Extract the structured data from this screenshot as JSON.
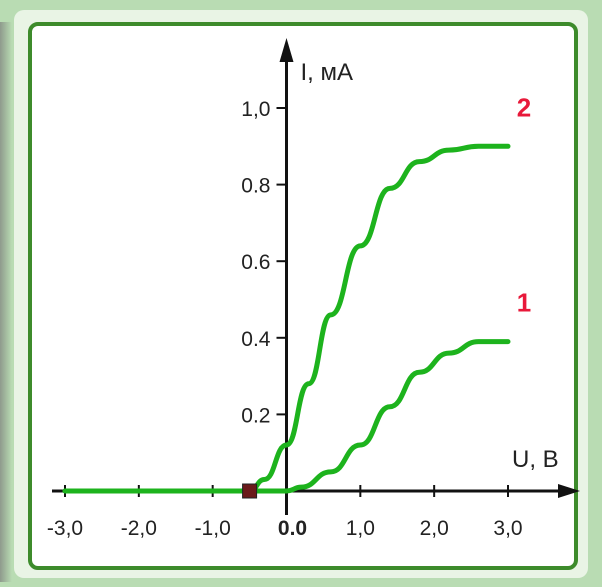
{
  "chart_data": {
    "type": "line",
    "title": "",
    "xlabel": "U, В",
    "ylabel": "I, мА",
    "xlim": [
      -3.0,
      3.0
    ],
    "ylim": [
      0,
      1.0
    ],
    "x_ticks": [
      "-3,0",
      "-2,0",
      "-1,0",
      "0.0",
      "1,0",
      "2,0",
      "3,0"
    ],
    "y_ticks": [
      "0.2",
      "0.4",
      "0.6",
      "0.8",
      "1,0"
    ],
    "grid": false,
    "series": [
      {
        "name": "1",
        "color": "#1db31d",
        "x": [
          -3.0,
          0.0,
          0.2,
          0.6,
          1.0,
          1.4,
          1.8,
          2.2,
          2.6,
          3.0
        ],
        "y": [
          0.0,
          0.0,
          0.01,
          0.05,
          0.12,
          0.22,
          0.31,
          0.36,
          0.39,
          0.39
        ]
      },
      {
        "name": "2",
        "color": "#1db31d",
        "x": [
          -3.0,
          -0.5,
          -0.3,
          0.0,
          0.3,
          0.6,
          1.0,
          1.4,
          1.8,
          2.2,
          2.6,
          3.0
        ],
        "y": [
          0.0,
          0.0,
          0.03,
          0.12,
          0.28,
          0.46,
          0.64,
          0.79,
          0.86,
          0.89,
          0.9,
          0.9
        ]
      }
    ],
    "marker": {
      "x": -0.5,
      "y": 0.0,
      "color": "#6b1a1a"
    },
    "axis_color": "#111111",
    "label_color": "#e8193a"
  }
}
